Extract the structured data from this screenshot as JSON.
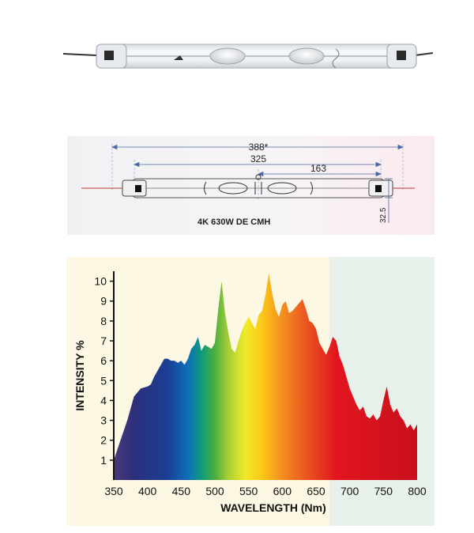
{
  "drawing": {
    "dim_overall": "388*",
    "dim_arc_length": "325",
    "dim_half_length": "163",
    "dim_diameter": "32.5",
    "lamp_title": "4K 630W DE CMH"
  },
  "chart_data": {
    "type": "area",
    "title": "",
    "xlabel": "WAVELENGTH (Nm)",
    "ylabel": "INTENSITY %",
    "xlim": [
      350,
      800
    ],
    "ylim": [
      0,
      10.5
    ],
    "x_ticks": [
      350,
      400,
      450,
      500,
      550,
      600,
      650,
      700,
      750,
      800
    ],
    "y_ticks": [
      1,
      2,
      3,
      4,
      5,
      6,
      7,
      8,
      9,
      10
    ],
    "grid": false,
    "legend": "none",
    "colors": {
      "background_warm": "#fdf8e4",
      "background_cool": "#e8f1e9",
      "axis": "#111111",
      "fill_stops": [
        {
          "nm": 350,
          "color": "#4a3a78"
        },
        {
          "nm": 380,
          "color": "#2d2f7a"
        },
        {
          "nm": 430,
          "color": "#1a3f95"
        },
        {
          "nm": 460,
          "color": "#0e6fba"
        },
        {
          "nm": 480,
          "color": "#0f9a7a"
        },
        {
          "nm": 500,
          "color": "#4cae3f"
        },
        {
          "nm": 520,
          "color": "#a8cf35"
        },
        {
          "nm": 545,
          "color": "#f1ea2a"
        },
        {
          "nm": 570,
          "color": "#fbc817"
        },
        {
          "nm": 595,
          "color": "#f59820"
        },
        {
          "nm": 620,
          "color": "#ee6e1f"
        },
        {
          "nm": 655,
          "color": "#e53a1f"
        },
        {
          "nm": 680,
          "color": "#e2151f"
        },
        {
          "nm": 800,
          "color": "#c8101c"
        }
      ]
    },
    "x": [
      350,
      360,
      370,
      380,
      385,
      390,
      400,
      405,
      410,
      415,
      420,
      425,
      430,
      435,
      440,
      445,
      450,
      455,
      460,
      465,
      470,
      475,
      480,
      485,
      490,
      495,
      500,
      505,
      510,
      515,
      520,
      525,
      530,
      535,
      540,
      545,
      550,
      555,
      560,
      565,
      570,
      575,
      580,
      585,
      590,
      595,
      600,
      605,
      610,
      615,
      620,
      625,
      630,
      635,
      640,
      645,
      650,
      655,
      660,
      665,
      670,
      675,
      680,
      685,
      690,
      695,
      700,
      705,
      710,
      715,
      720,
      725,
      730,
      735,
      740,
      745,
      750,
      755,
      760,
      765,
      770,
      775,
      780,
      785,
      790,
      795,
      800
    ],
    "y": [
      1.0,
      2.0,
      3.0,
      4.2,
      4.4,
      4.6,
      4.7,
      4.8,
      5.2,
      5.5,
      5.8,
      6.1,
      6.1,
      6.0,
      6.0,
      5.9,
      6.0,
      5.8,
      6.1,
      6.6,
      6.8,
      7.2,
      6.5,
      6.8,
      6.7,
      6.6,
      6.9,
      8.6,
      10.0,
      8.4,
      7.4,
      6.6,
      6.4,
      7.0,
      7.5,
      7.9,
      8.2,
      7.9,
      7.6,
      8.3,
      8.5,
      9.3,
      10.4,
      9.4,
      8.6,
      8.2,
      8.8,
      9.0,
      8.4,
      8.5,
      8.7,
      8.9,
      9.1,
      8.6,
      8.0,
      7.9,
      7.6,
      6.9,
      6.6,
      6.3,
      6.7,
      7.2,
      7.0,
      6.2,
      5.8,
      5.2,
      4.6,
      4.2,
      3.8,
      3.5,
      3.7,
      3.2,
      3.1,
      3.3,
      3.0,
      3.2,
      4.0,
      4.7,
      3.8,
      3.4,
      3.6,
      3.2,
      3.0,
      2.6,
      2.8,
      2.5,
      2.8
    ]
  }
}
